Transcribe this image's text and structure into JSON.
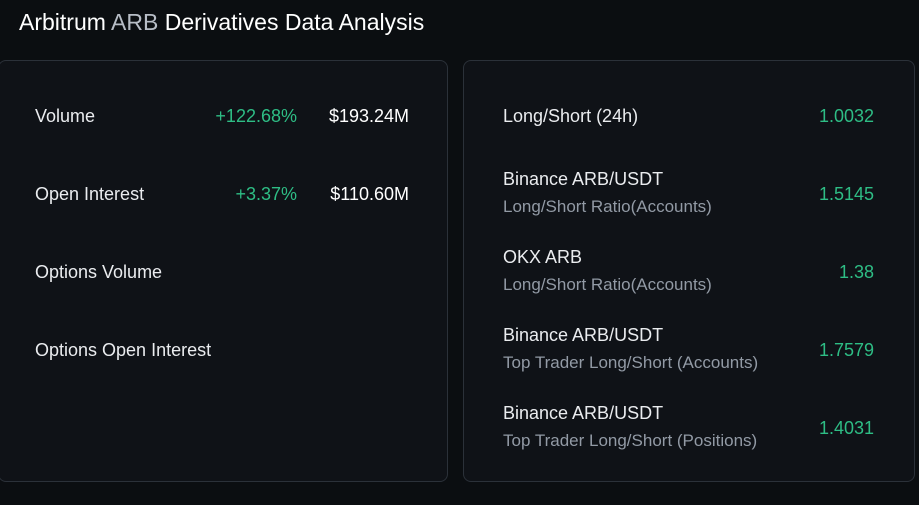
{
  "header": {
    "title_prefix": "Arbitrum",
    "ticker": "ARB",
    "title_suffix": "Derivatives Data Analysis"
  },
  "left_panel": {
    "metrics": [
      {
        "label": "Volume",
        "change": "+122.68%",
        "value": "$193.24M"
      },
      {
        "label": "Open Interest",
        "change": "+3.37%",
        "value": "$110.60M"
      },
      {
        "label": "Options Volume"
      },
      {
        "label": "Options Open Interest"
      }
    ]
  },
  "right_panel": {
    "ratios": [
      {
        "title": "Long/Short (24h)",
        "value": "1.0032"
      },
      {
        "title": "Binance ARB/USDT",
        "subtitle": "Long/Short Ratio(Accounts)",
        "value": "1.5145"
      },
      {
        "title": "OKX ARB",
        "subtitle": "Long/Short Ratio(Accounts)",
        "value": "1.38"
      },
      {
        "title": "Binance ARB/USDT",
        "subtitle": "Top Trader Long/Short (Accounts)",
        "value": "1.7579"
      },
      {
        "title": "Binance ARB/USDT",
        "subtitle": "Top Trader Long/Short (Positions)",
        "value": "1.4031"
      }
    ]
  },
  "colors": {
    "background": "#0b0e11",
    "card": "#0f1217",
    "border": "#2b3139",
    "positive": "#2ebd85",
    "text_primary": "#eaecef",
    "text_secondary": "#929aa5"
  }
}
